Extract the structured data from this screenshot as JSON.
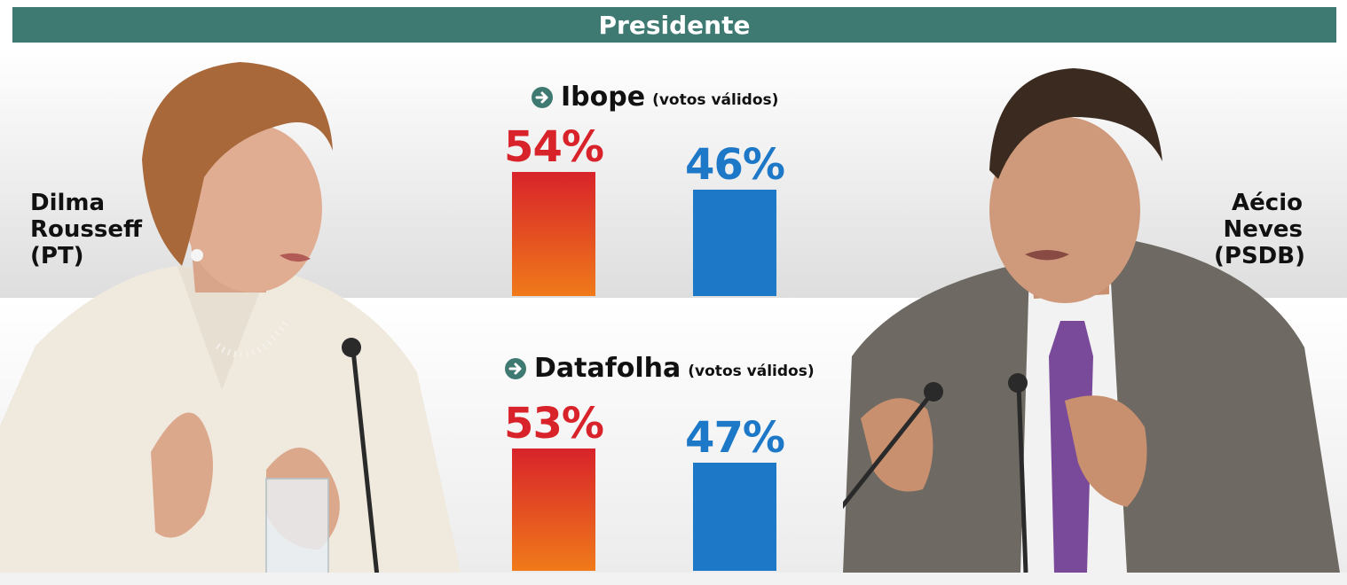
{
  "header": {
    "title": "Presidente"
  },
  "candidates": {
    "left": {
      "name_line1": "Dilma",
      "name_line2": "Rousseff",
      "party": "(PT)"
    },
    "right": {
      "name_line1": "Aécio",
      "name_line2": "Neves",
      "party": "(PSDB)"
    }
  },
  "colors": {
    "header": "#3f7a72",
    "dilma_top": "#d8232a",
    "dilma_bottom": "#f07a1a",
    "aecio": "#1e78c8",
    "arrow": "#3f7a72"
  },
  "surveys": [
    {
      "name": "Ibope",
      "note": "(votos válidos)",
      "dilma_label": "54%",
      "aecio_label": "46%"
    },
    {
      "name": "Datafolha",
      "note": "(votos válidos)",
      "dilma_label": "53%",
      "aecio_label": "47%"
    }
  ],
  "chart_data": [
    {
      "type": "bar",
      "title": "Ibope",
      "categories": [
        "Dilma Rousseff (PT)",
        "Aécio Neves (PSDB)"
      ],
      "values": [
        54,
        46
      ],
      "ylim": [
        0,
        100
      ]
    },
    {
      "type": "bar",
      "title": "Datafolha",
      "categories": [
        "Dilma Rousseff (PT)",
        "Aécio Neves (PSDB)"
      ],
      "values": [
        53,
        47
      ],
      "ylim": [
        0,
        100
      ]
    }
  ]
}
